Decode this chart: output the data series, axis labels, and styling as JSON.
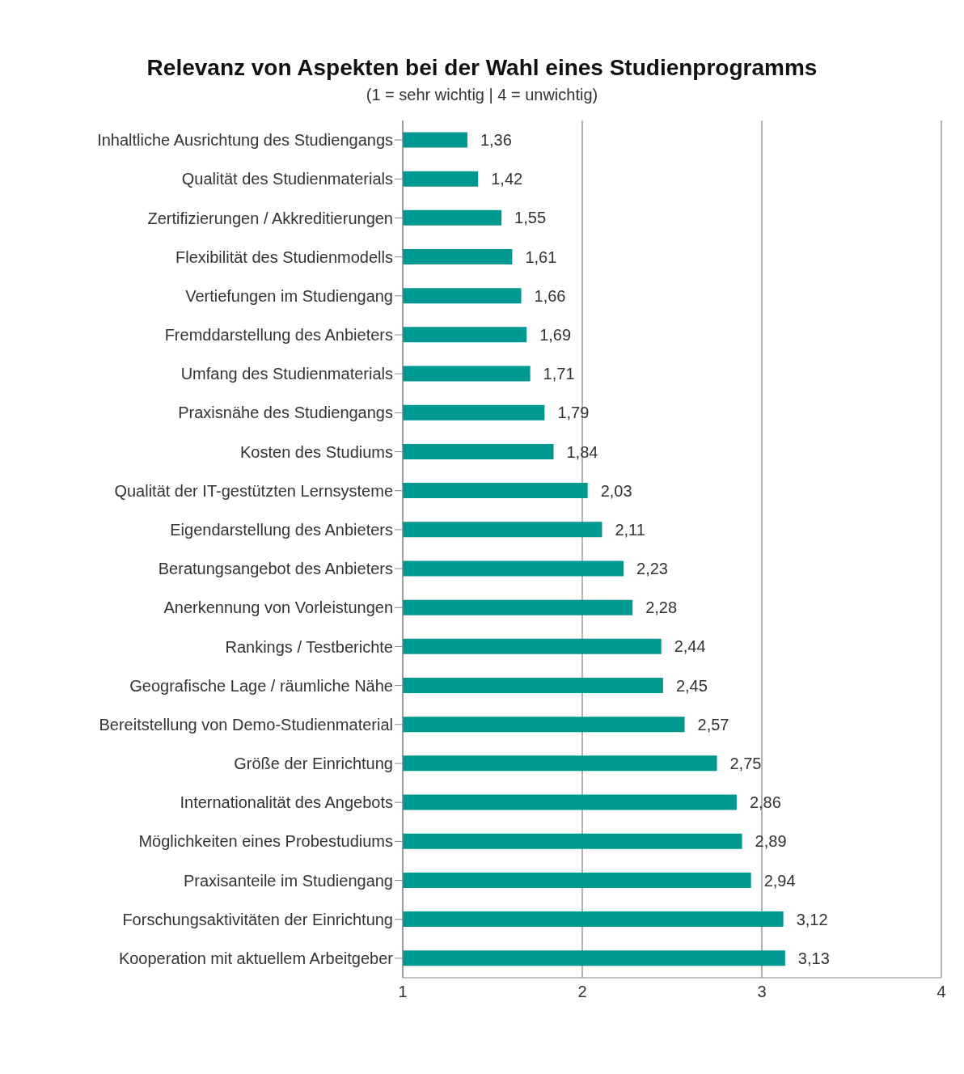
{
  "chart_data": {
    "type": "bar",
    "orientation": "horizontal",
    "title": "Relevanz von Aspekten bei der Wahl eines Studienprogramms",
    "subtitle": "(1 = sehr wichtig | 4 = unwichtig)",
    "categories": [
      "Inhaltliche Ausrichtung des Studiengangs",
      "Qualität des Studienmaterials",
      "Zertifizierungen / Akkreditierungen",
      "Flexibilität des Studienmodells",
      "Vertiefungen im Studiengang",
      "Fremddarstellung des Anbieters",
      "Umfang des Studienmaterials",
      "Praxisnähe des Studiengangs",
      "Kosten des Studiums",
      "Qualität der IT-gestützten Lernsysteme",
      "Eigendarstellung des Anbieters",
      "Beratungsangebot des Anbieters",
      "Anerkennung von Vorleistungen",
      "Rankings / Testberichte",
      "Geografische Lage / räumliche Nähe",
      "Bereitstellung von Demo-Studienmaterial",
      "Größe der Einrichtung",
      "Internationalität des Angebots",
      "Möglichkeiten eines Probestudiums",
      "Praxisanteile im Studiengang",
      "Forschungsaktivitäten der Einrichtung",
      "Kooperation mit aktuellem Arbeitgeber"
    ],
    "values": [
      1.36,
      1.42,
      1.55,
      1.61,
      1.66,
      1.69,
      1.71,
      1.79,
      1.84,
      2.03,
      2.11,
      2.23,
      2.28,
      2.44,
      2.45,
      2.57,
      2.75,
      2.86,
      2.89,
      2.94,
      3.12,
      3.13
    ],
    "value_labels": [
      "1,36",
      "1,42",
      "1,55",
      "1,61",
      "1,66",
      "1,69",
      "1,71",
      "1,79",
      "1,84",
      "2,03",
      "2,11",
      "2,23",
      "2,28",
      "2,44",
      "2,45",
      "2,57",
      "2,75",
      "2,86",
      "2,89",
      "2,94",
      "3,12",
      "3,13"
    ],
    "color": "#009991",
    "xlim": [
      1,
      4
    ],
    "xticks": [
      1,
      2,
      3,
      4
    ],
    "grid": "x"
  }
}
